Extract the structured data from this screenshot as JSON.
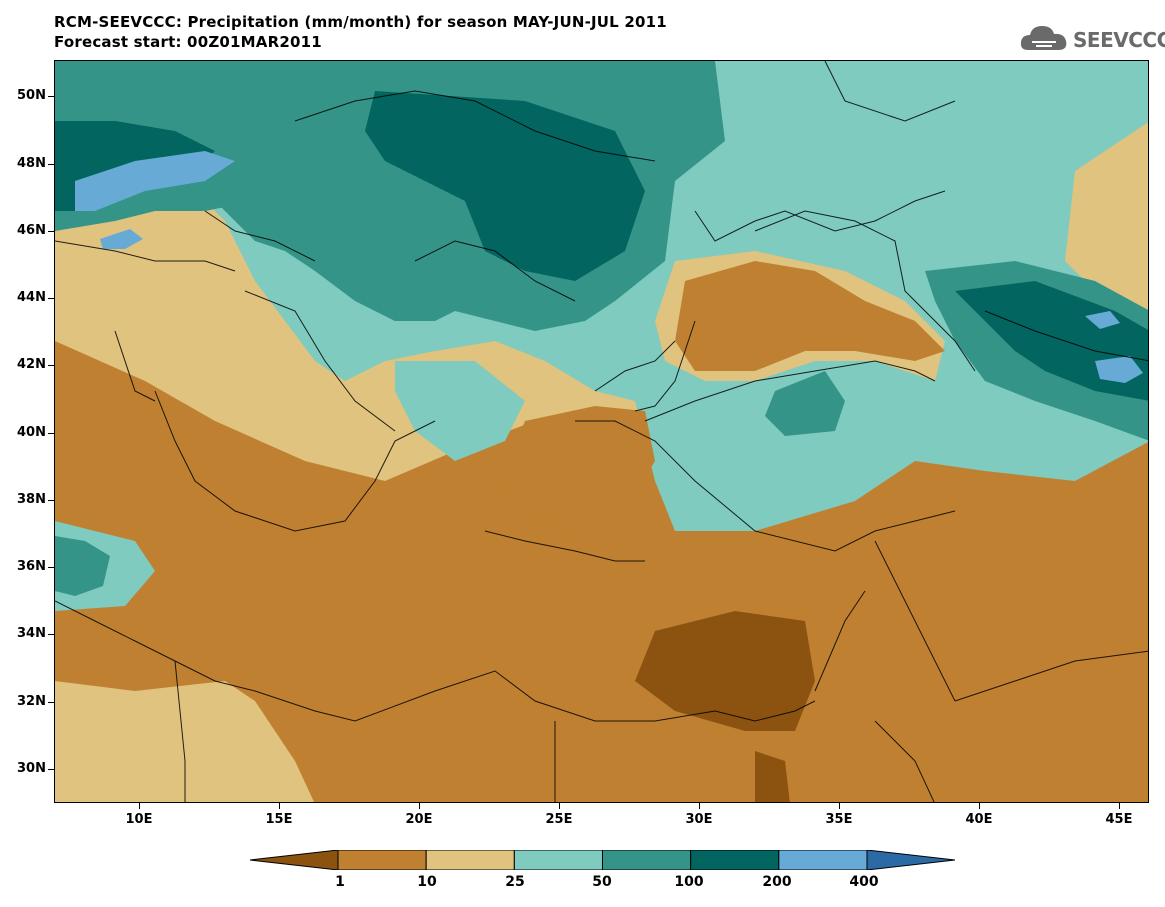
{
  "header": {
    "title": "RCM-SEEVCCC: Precipitation (mm/month) for season MAY-JUN-JUL 2011",
    "subtitle": "Forecast start: 00Z01MAR2011"
  },
  "logo": {
    "text": "SEEVCCC",
    "icon": "cloud-icon"
  },
  "map": {
    "lat_labels": [
      "50N",
      "48N",
      "46N",
      "44N",
      "42N",
      "40N",
      "38N",
      "36N",
      "34N",
      "32N",
      "30N"
    ],
    "lon_labels": [
      "10E",
      "15E",
      "20E",
      "25E",
      "30E",
      "35E",
      "40E",
      "45E"
    ]
  },
  "legend": {
    "levels": [
      "1",
      "10",
      "25",
      "50",
      "100",
      "200",
      "400"
    ],
    "colors": [
      "#8c5210",
      "#bf8131",
      "#dfc37f",
      "#7fcbbf",
      "#359488",
      "#03655f",
      "#68aad6",
      "#2c6aa6"
    ]
  }
}
